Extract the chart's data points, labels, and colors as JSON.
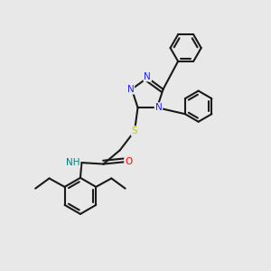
{
  "bg_color": "#e8e8e8",
  "bond_color": "#1a1a1a",
  "bond_width": 1.5,
  "N_color": "#2020ff",
  "O_color": "#ff0000",
  "S_color": "#cccc00",
  "H_color": "#008080",
  "figsize": [
    3.0,
    3.0
  ],
  "dpi": 100,
  "xlim": [
    0,
    10
  ],
  "ylim": [
    0,
    10
  ]
}
